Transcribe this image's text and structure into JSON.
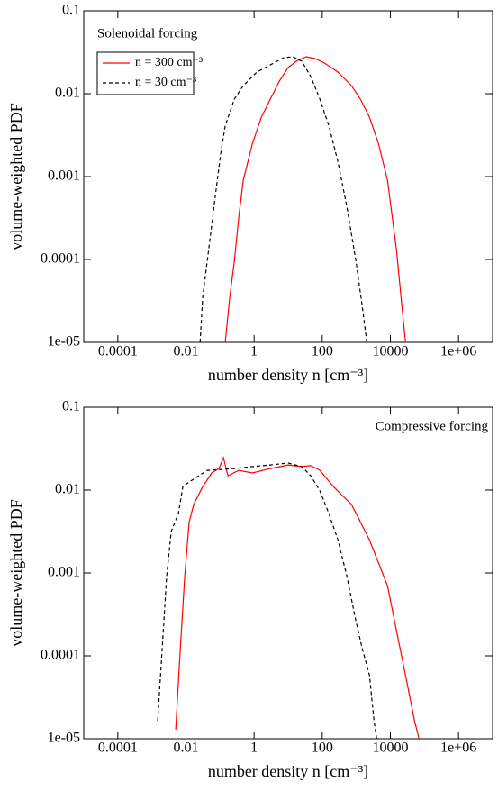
{
  "chart_data": [
    {
      "type": "line",
      "annotation": "Solenoidal forcing",
      "xlabel": "number density n [cm⁻³]",
      "ylabel": "volume-weighted PDF",
      "xscale": "log",
      "yscale": "log",
      "legend": "upper left",
      "xlim": [
        1e-05,
        10000000
      ],
      "ylim": [
        1e-05,
        0.1
      ],
      "xticks": [
        0.0001,
        0.01,
        1,
        100,
        10000,
        {
          "value": 1000000,
          "label": "1e+06"
        }
      ],
      "yticks": [
        {
          "value": 1e-05,
          "label": "1e-05"
        },
        0.0001,
        0.001,
        0.01,
        0.1
      ],
      "series": [
        {
          "name": "n = 300 cm⁻³",
          "color": "#ff0000",
          "linestyle": "solid",
          "x": [
            0.142,
            0.193,
            0.262,
            0.355,
            0.48,
            0.89,
            1.63,
            3.0,
            5.5,
            10,
            18.6,
            34,
            63,
            116,
            290,
            720,
            1320,
            2430,
            4480,
            8230,
            15100,
            20500,
            27800
          ],
          "values": [
            1e-05,
            3.5e-05,
            9.5e-05,
            0.00033,
            0.0009,
            0.0025,
            0.0052,
            0.0086,
            0.0142,
            0.0207,
            0.0252,
            0.0279,
            0.0265,
            0.0234,
            0.0182,
            0.0125,
            0.0086,
            0.0052,
            0.0025,
            0.0009,
            0.00013,
            3.5e-05,
            1e-05
          ]
        },
        {
          "name": "n = 30 cm⁻³",
          "color": "#000000",
          "linestyle": "dashed",
          "x": [
            0.026,
            0.031,
            0.042,
            0.057,
            0.077,
            0.105,
            0.142,
            0.262,
            0.48,
            1.2,
            3.0,
            7.5,
            13.7,
            25,
            46,
            85,
            157,
            290,
            530,
            975,
            1500,
            2030
          ],
          "values": [
            1e-05,
            3.5e-05,
            9.5e-05,
            0.00026,
            0.0007,
            0.0019,
            0.0041,
            0.0086,
            0.0125,
            0.0182,
            0.0223,
            0.0272,
            0.0279,
            0.0246,
            0.0161,
            0.0086,
            0.0041,
            0.0015,
            0.00043,
            9.5e-05,
            2.7e-05,
            1e-05
          ]
        }
      ]
    },
    {
      "type": "line",
      "annotation": "Compressive forcing",
      "xlabel": "number density n [cm⁻³]",
      "ylabel": "volume-weighted PDF",
      "xscale": "log",
      "yscale": "log",
      "xlim": [
        1e-05,
        10000000
      ],
      "ylim": [
        1e-05,
        0.1
      ],
      "xticks": [
        0.0001,
        0.01,
        1,
        100,
        10000,
        {
          "value": 1000000,
          "label": "1e+06"
        }
      ],
      "yticks": [
        {
          "value": 1e-05,
          "label": "1e-05"
        },
        0.0001,
        0.001,
        0.01,
        0.1
      ],
      "series": [
        {
          "color": "#ff0000",
          "linestyle": "solid",
          "x": [
            0.005,
            0.0068,
            0.0092,
            0.0124,
            0.0169,
            0.031,
            0.057,
            0.093,
            0.126,
            0.171,
            0.355,
            0.89,
            3.0,
            10,
            25,
            46,
            85,
            213,
            720,
            2430,
            8230,
            15100,
            27800,
            51200,
            69300
          ],
          "values": [
            1.28e-05,
            0.000122,
            0.00091,
            0.0041,
            0.0067,
            0.011,
            0.0161,
            0.0182,
            0.0246,
            0.0149,
            0.0173,
            0.0161,
            0.0182,
            0.0201,
            0.0192,
            0.0197,
            0.0173,
            0.011,
            0.0067,
            0.0025,
            0.0007,
            0.0002,
            5.8e-05,
            1.65e-05,
            1e-05
          ]
        },
        {
          "color": "#000000",
          "linestyle": "dashed",
          "x": [
            0.00148,
            0.002,
            0.0027,
            0.0037,
            0.006,
            0.0081,
            0.0124,
            0.042,
            0.262,
            0.89,
            3.0,
            10,
            25,
            46,
            85,
            157,
            290,
            530,
            975,
            1500,
            2430,
            3300,
            3960
          ],
          "values": [
            1.65e-05,
            0.000122,
            0.00091,
            0.0032,
            0.0052,
            0.011,
            0.0125,
            0.0173,
            0.0182,
            0.0192,
            0.0201,
            0.0212,
            0.0192,
            0.0149,
            0.0098,
            0.0052,
            0.0025,
            0.00091,
            0.00026,
            0.000122,
            5.8e-05,
            1.65e-05,
            1e-05
          ]
        }
      ]
    }
  ]
}
